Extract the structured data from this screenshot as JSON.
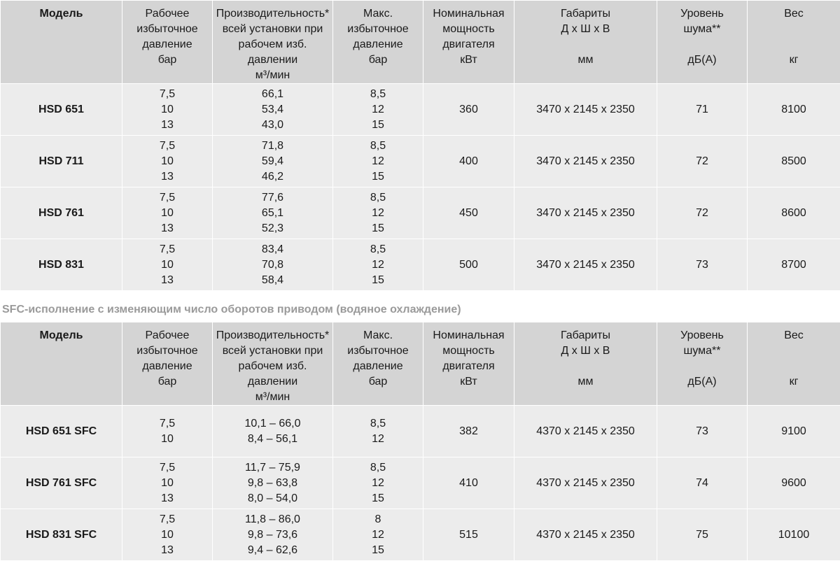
{
  "header": {
    "model": "Модель",
    "pressure": [
      "Рабочее",
      "избыточное",
      "давление"
    ],
    "pressure_unit": "бар",
    "capacity": [
      "Производительность*",
      "всей установки при",
      "рабочем изб. давлении"
    ],
    "capacity_unit": "м³/мин",
    "max_pressure": [
      "Макс.",
      "избыточное",
      "давление"
    ],
    "max_pressure_unit": "бар",
    "power": [
      "Номинальная",
      "мощность",
      "двигателя"
    ],
    "power_unit": "кВт",
    "dimensions": [
      "Габариты",
      "Д х Ш х В"
    ],
    "dimensions_unit": "мм",
    "noise": [
      "Уровень",
      "шума**"
    ],
    "noise_unit": "дБ(А)",
    "weight": [
      "Вес"
    ],
    "weight_unit": "кг"
  },
  "section_title": "SFC-исполнение с изменяющим число оборотов приводом (водяное охлаждение)",
  "table1": [
    {
      "model": "HSD 651",
      "pressure": [
        "7,5",
        "10",
        "13"
      ],
      "capacity": [
        "66,1",
        "53,4",
        "43,0"
      ],
      "max_pressure": [
        "8,5",
        "12",
        "15"
      ],
      "power": "360",
      "dimensions": "3470 x 2145 x 2350",
      "noise": "71",
      "weight": "8100"
    },
    {
      "model": "HSD 711",
      "pressure": [
        "7,5",
        "10",
        "13"
      ],
      "capacity": [
        "71,8",
        "59,4",
        "46,2"
      ],
      "max_pressure": [
        "8,5",
        "12",
        "15"
      ],
      "power": "400",
      "dimensions": "3470 x 2145 x 2350",
      "noise": "72",
      "weight": "8500"
    },
    {
      "model": "HSD 761",
      "pressure": [
        "7,5",
        "10",
        "13"
      ],
      "capacity": [
        "77,6",
        "65,1",
        "52,3"
      ],
      "max_pressure": [
        "8,5",
        "12",
        "15"
      ],
      "power": "450",
      "dimensions": "3470 x 2145 x 2350",
      "noise": "72",
      "weight": "8600"
    },
    {
      "model": "HSD 831",
      "pressure": [
        "7,5",
        "10",
        "13"
      ],
      "capacity": [
        "83,4",
        "70,8",
        "58,4"
      ],
      "max_pressure": [
        "8,5",
        "12",
        "15"
      ],
      "power": "500",
      "dimensions": "3470 x 2145 x 2350",
      "noise": "73",
      "weight": "8700"
    }
  ],
  "table2": [
    {
      "model": "HSD 651 SFC",
      "pressure": [
        "7,5",
        "10"
      ],
      "capacity": [
        "10,1 – 66,0",
        "8,4 – 56,1"
      ],
      "max_pressure": [
        "8,5",
        "12"
      ],
      "power": "382",
      "dimensions": "4370 x 2145 x 2350",
      "noise": "73",
      "weight": "9100"
    },
    {
      "model": "HSD 761 SFC",
      "pressure": [
        "7,5",
        "10",
        "13"
      ],
      "capacity": [
        "11,7 – 75,9",
        "9,8 – 63,8",
        "8,0 – 54,0"
      ],
      "max_pressure": [
        "8,5",
        "12",
        "15"
      ],
      "power": "410",
      "dimensions": "4370 x 2145 x 2350",
      "noise": "74",
      "weight": "9600"
    },
    {
      "model": "HSD 831 SFC",
      "pressure": [
        "7,5",
        "10",
        "13"
      ],
      "capacity": [
        "11,8 – 86,0",
        "9,8 – 73,6",
        "9,4 – 62,6"
      ],
      "max_pressure": [
        "8",
        "12",
        "15"
      ],
      "power": "515",
      "dimensions": "4370 x 2145 x 2350",
      "noise": "75",
      "weight": "10100"
    }
  ]
}
